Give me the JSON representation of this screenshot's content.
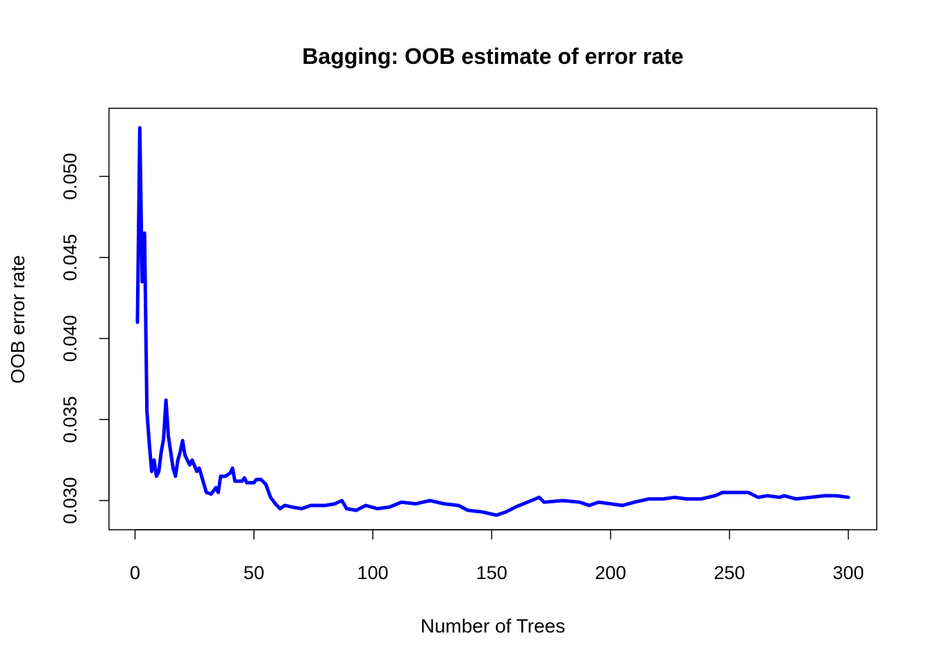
{
  "chart_data": {
    "type": "line",
    "title": "Bagging: OOB estimate of error rate",
    "x_label": "Number of Trees",
    "y_label": "OOB error rate",
    "x": [
      1,
      2,
      3,
      4,
      5,
      6,
      7,
      8,
      9,
      10,
      11,
      12,
      13,
      14,
      15,
      16,
      17,
      18,
      19,
      20,
      21,
      22,
      23,
      24,
      26,
      27,
      29,
      30,
      32,
      34,
      35,
      36,
      38,
      40,
      41,
      42,
      45,
      46,
      47,
      50,
      51,
      53,
      55,
      57,
      59,
      61,
      63,
      66,
      70,
      74,
      80,
      84,
      87,
      89,
      93,
      97,
      102,
      107,
      112,
      118,
      124,
      130,
      136,
      140,
      146,
      152,
      156,
      160,
      165,
      170,
      172,
      180,
      187,
      191,
      195,
      200,
      205,
      210,
      216,
      222,
      227,
      232,
      238,
      244,
      247,
      252,
      258,
      262,
      266,
      271,
      273,
      278,
      284,
      290,
      295,
      300
    ],
    "series": [
      {
        "name": "OOB",
        "color": "#0000ff",
        "values": [
          0.041,
          0.053,
          0.0435,
          0.0465,
          0.0355,
          0.0335,
          0.0318,
          0.0325,
          0.0315,
          0.0318,
          0.033,
          0.0338,
          0.0362,
          0.034,
          0.033,
          0.032,
          0.0315,
          0.0325,
          0.033,
          0.0337,
          0.0328,
          0.0325,
          0.0322,
          0.0325,
          0.0318,
          0.032,
          0.031,
          0.0305,
          0.0304,
          0.0308,
          0.0305,
          0.0315,
          0.0315,
          0.0317,
          0.032,
          0.0312,
          0.0312,
          0.0314,
          0.0311,
          0.0311,
          0.0313,
          0.0313,
          0.031,
          0.0302,
          0.0298,
          0.0295,
          0.0297,
          0.0296,
          0.0295,
          0.0297,
          0.0297,
          0.0298,
          0.03,
          0.0295,
          0.0294,
          0.0297,
          0.0295,
          0.0296,
          0.0299,
          0.0298,
          0.03,
          0.0298,
          0.0297,
          0.0294,
          0.0293,
          0.0291,
          0.0293,
          0.0296,
          0.0299,
          0.0302,
          0.0299,
          0.03,
          0.0299,
          0.0297,
          0.0299,
          0.0298,
          0.0297,
          0.0299,
          0.0301,
          0.0301,
          0.0302,
          0.0301,
          0.0301,
          0.0303,
          0.0305,
          0.0305,
          0.0305,
          0.0302,
          0.0303,
          0.0302,
          0.0303,
          0.0301,
          0.0302,
          0.0303,
          0.0303,
          0.0302
        ]
      }
    ],
    "xlim": [
      -10.96,
      311.96
    ],
    "xticks": [
      0,
      50,
      100,
      150,
      200,
      250,
      300
    ],
    "ylim": [
      0.0282,
      0.0542
    ],
    "yticks": [
      {
        "value": 0.03,
        "label": "0.030"
      },
      {
        "value": 0.035,
        "label": "0.035"
      },
      {
        "value": 0.04,
        "label": "0.040"
      },
      {
        "value": 0.045,
        "label": "0.045"
      },
      {
        "value": 0.05,
        "label": "0.050"
      }
    ],
    "grid": false
  }
}
